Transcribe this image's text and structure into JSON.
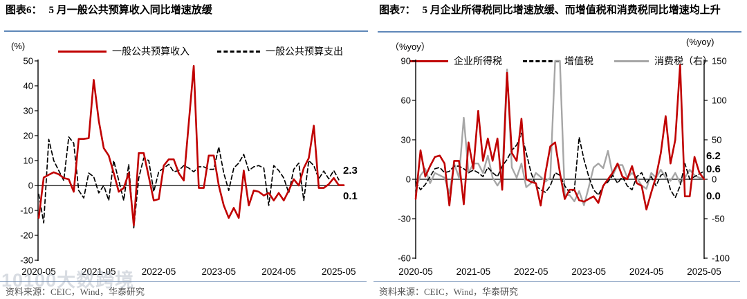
{
  "watermark": "10100大数跨境",
  "months": [
    "2020-05",
    "2020-06",
    "2020-07",
    "2020-08",
    "2020-09",
    "2020-10",
    "2020-11",
    "2020-12",
    "2021-01",
    "2021-02",
    "2021-03",
    "2021-04",
    "2021-05",
    "2021-06",
    "2021-07",
    "2021-08",
    "2021-09",
    "2021-10",
    "2021-11",
    "2021-12",
    "2022-01",
    "2022-02",
    "2022-03",
    "2022-04",
    "2022-05",
    "2022-06",
    "2022-07",
    "2022-08",
    "2022-09",
    "2022-10",
    "2022-11",
    "2022-12",
    "2023-01",
    "2023-02",
    "2023-03",
    "2023-04",
    "2023-05",
    "2023-06",
    "2023-07",
    "2023-08",
    "2023-09",
    "2023-10",
    "2023-11",
    "2023-12",
    "2024-01",
    "2024-02",
    "2024-03",
    "2024-04",
    "2024-05",
    "2024-06",
    "2024-07",
    "2024-08",
    "2024-09",
    "2024-10",
    "2024-11",
    "2024-12",
    "2025-01",
    "2025-02",
    "2025-03",
    "2025-04",
    "2025-05"
  ],
  "chart_data": [
    {
      "type": "line",
      "title_label": "图表6：",
      "title": "5 月一般公共预算收入同比增速放缓",
      "y_axis_unit_left": "(%)",
      "ylim_left": [
        -30,
        50
      ],
      "y_ticks_left": [
        50,
        40,
        30,
        20,
        10,
        0,
        -10,
        -20,
        -30
      ],
      "x_ticks": [
        "2020-05",
        "2021-05",
        "2022-05",
        "2023-05",
        "2024-05",
        "2025-05"
      ],
      "x_ref": "months",
      "grid": "zero-line-only",
      "legend_position": "top",
      "series": [
        {
          "name": "一般公共预算收入",
          "color": "#C00000",
          "style": "solid",
          "axis": "left",
          "values": [
            -13,
            3.2,
            4.3,
            5.3,
            4.5,
            3,
            2.5,
            -2.5,
            18.7,
            18.7,
            19,
            42.4,
            26,
            15,
            12,
            5,
            -2.5,
            -1,
            5,
            -16,
            13,
            13,
            3.5,
            -6,
            -5.5,
            8,
            10.5,
            10.5,
            5,
            2,
            25,
            48,
            -1,
            -1,
            12,
            12,
            0,
            -8,
            -13,
            -9,
            -13,
            6,
            -8,
            -2,
            -2.5,
            -4,
            -3,
            -6,
            -3,
            -6,
            -2,
            2.5,
            0,
            7,
            11,
            24,
            -1,
            -1,
            0.5,
            3,
            0.1,
            0.1
          ]
        },
        {
          "name": "一般公共预算支出",
          "color": "#000000",
          "style": "dashed",
          "axis": "left",
          "values": [
            -3.5,
            -15,
            18.5,
            10,
            6,
            2,
            19.5,
            17,
            -2,
            -5,
            5,
            3.5,
            -3,
            0,
            -6,
            10,
            2,
            -6,
            8.5,
            -17,
            3,
            11,
            10,
            -2.5,
            5.5,
            7,
            8.5,
            5.5,
            6,
            8,
            7,
            5.5,
            7.5,
            7.5,
            6.5,
            6.5,
            15.5,
            5,
            -2,
            7,
            9,
            12.5,
            6,
            7.5,
            8,
            7,
            -8,
            8,
            6,
            3,
            -3,
            6.5,
            9,
            -6,
            10,
            8,
            2.7,
            5.8,
            2.7,
            6,
            2.3
          ]
        }
      ],
      "end_labels": [
        {
          "text": "2.3",
          "color": "#000000",
          "series": "一般公共预算支出"
        },
        {
          "text": "0.1",
          "color": "#C00000",
          "series": "一般公共预算收入"
        }
      ],
      "source": "资料来源：CEIC，Wind，华泰研究"
    },
    {
      "type": "line",
      "title_label": "图表7：",
      "title": "5 月企业所得税同比增速放缓、而增值税和消费税同比增速均上升",
      "y_axis_unit_left": "（%yoy）",
      "y_axis_unit_right": "(%yoy)",
      "ylim_left": [
        -60,
        90
      ],
      "ylim_right": [
        -100,
        150
      ],
      "y_ticks_left": [
        90,
        60,
        30,
        0,
        -30,
        -60
      ],
      "y_ticks_right": [
        150,
        100,
        50,
        0,
        -50,
        -100
      ],
      "x_ticks": [
        "2020-05",
        "2021-05",
        "2022-05",
        "2023-05",
        "2024-05",
        "2025-05"
      ],
      "x_ref": "months",
      "grid": "zero-line-only",
      "legend_position": "top",
      "series": [
        {
          "name": "企业所得税",
          "color": "#C00000",
          "style": "solid",
          "axis": "left",
          "values": [
            -15,
            22,
            2,
            10,
            17,
            18,
            12,
            -20,
            14,
            14,
            -19,
            28,
            8,
            52,
            14,
            31,
            14,
            31,
            -8,
            81,
            20,
            14,
            46,
            0,
            -2,
            -3,
            -20,
            5,
            25,
            28,
            5,
            -15,
            -8,
            -8,
            -16,
            -17,
            -15,
            -13,
            -18,
            -5,
            0,
            5,
            12,
            2,
            0,
            10,
            -3,
            -5,
            -23,
            -10,
            2,
            20,
            48,
            12,
            30,
            87,
            -13,
            -13,
            17,
            5,
            0
          ]
        },
        {
          "name": "增值税",
          "color": "#000000",
          "style": "dashed",
          "axis": "left",
          "values": [
            -2,
            -8,
            -4,
            2,
            8,
            9,
            5,
            6,
            10,
            10,
            8,
            5,
            7,
            5,
            2,
            9,
            5,
            2,
            10,
            15,
            22,
            26,
            35,
            20,
            5,
            -5,
            -8,
            -10,
            -5,
            5,
            3,
            -5,
            -10,
            -8,
            32,
            15,
            2,
            -8,
            -12,
            -5,
            -2,
            3,
            -3,
            2,
            -5,
            -8,
            2,
            5,
            -3,
            2,
            -5,
            3,
            5,
            -8,
            -14,
            -5,
            12,
            0,
            2,
            4,
            6.2
          ]
        },
        {
          "name": "消费税（右）",
          "color": "#A6A6A6",
          "style": "solid",
          "axis": "right",
          "values": [
            -12,
            5,
            13,
            -5,
            8,
            5,
            2,
            -18,
            20,
            2,
            78,
            8,
            20,
            20,
            8,
            30,
            2,
            -8,
            2,
            139,
            15,
            2,
            20,
            -10,
            -5,
            8,
            3,
            -3,
            2,
            150,
            150,
            -20,
            -20,
            -28,
            -15,
            -33,
            -10,
            15,
            20,
            14,
            36,
            5,
            18,
            18,
            2,
            8,
            2,
            -8,
            -12,
            8,
            2,
            12,
            2,
            -2,
            8,
            -5,
            2,
            12,
            5,
            2,
            0.6
          ]
        }
      ],
      "end_labels": [
        {
          "text": "6.2",
          "color": "#000000",
          "series": "增值税"
        },
        {
          "text": "0.6",
          "color": "#A6A6A6",
          "series": "消费税（右）"
        },
        {
          "text": "0.0",
          "color": "#C00000",
          "series": "企业所得税"
        }
      ],
      "source": "资料来源：CEIC，Wind，华泰研究"
    }
  ]
}
